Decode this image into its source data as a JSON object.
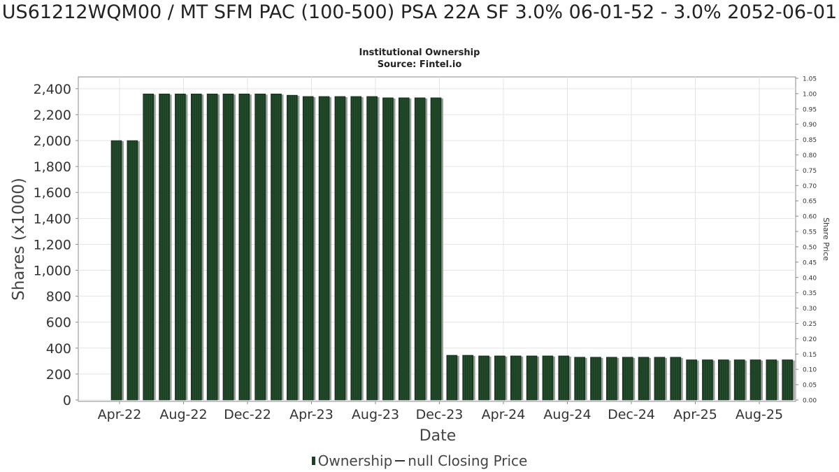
{
  "chart_data": {
    "type": "bar",
    "title": "US61212WQM00 / MT SFM PAC (100-500) PSA 22A SF 3.0% 06-01-52 - 3.0% 2052-06-01",
    "subtitle": "Institutional Ownership",
    "source": "Source: Fintel.io",
    "xlabel": "Date",
    "ylabel": "Shares (x1000)",
    "y2label": "Share Price",
    "ylim": [
      0,
      2480
    ],
    "y2lim": [
      0,
      1.05
    ],
    "yticks": [
      "0",
      "200",
      "400",
      "600",
      "800",
      "1,000",
      "1,200",
      "1,400",
      "1,600",
      "1,800",
      "2,000",
      "2,200",
      "2,400"
    ],
    "y2ticks": [
      "0.00",
      "0.05",
      "0.10",
      "0.15",
      "0.20",
      "0.25",
      "0.30",
      "0.35",
      "0.40",
      "0.45",
      "0.50",
      "0.55",
      "0.60",
      "0.65",
      "0.70",
      "0.75",
      "0.80",
      "0.85",
      "0.90",
      "0.95",
      "1.00",
      "1.05"
    ],
    "xticks": [
      "Apr-22",
      "Aug-22",
      "Dec-22",
      "Apr-23",
      "Aug-23",
      "Dec-23",
      "Apr-24",
      "Aug-24",
      "Dec-24",
      "Apr-25",
      "Aug-25"
    ],
    "grid": true,
    "legend_position": "bottom",
    "series": [
      {
        "name": "Ownership",
        "color": "#1c4024",
        "values": [
          2000,
          2000,
          2360,
          2360,
          2360,
          2360,
          2360,
          2360,
          2360,
          2360,
          2360,
          2350,
          2340,
          2340,
          2340,
          2340,
          2340,
          2330,
          2330,
          2330,
          2330,
          345,
          345,
          340,
          340,
          340,
          340,
          340,
          340,
          330,
          330,
          330,
          330,
          330,
          330,
          330,
          310,
          310,
          310,
          310,
          310,
          310,
          310
        ]
      },
      {
        "name": "null Closing Price",
        "color": "#333333",
        "values": []
      }
    ]
  }
}
